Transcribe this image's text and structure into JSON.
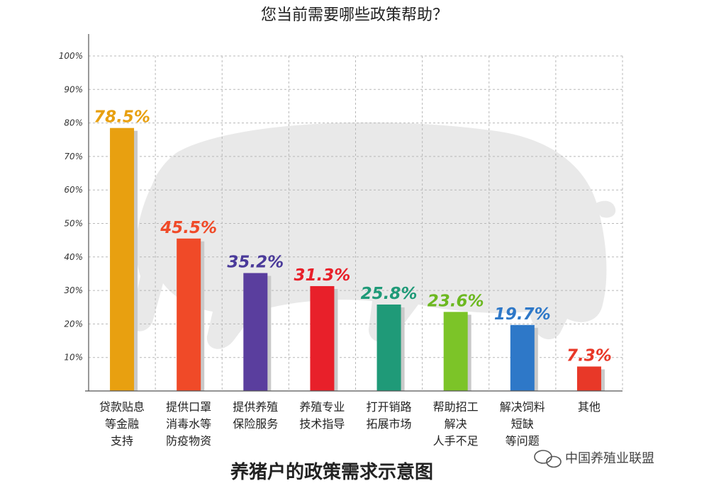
{
  "chart_data": {
    "type": "bar",
    "title": "您当前需要哪些政策帮助？",
    "subtitle": "养猪户的政策需求示意图",
    "ylim": [
      0,
      100
    ],
    "yticks": [
      "10%",
      "20%",
      "30%",
      "40%",
      "50%",
      "60%",
      "70%",
      "80%",
      "90%",
      "100%"
    ],
    "grid": true,
    "categories": [
      [
        "贷款贴息",
        "等金融",
        "支持"
      ],
      [
        "提供口罩",
        "消毒水等",
        "防疫物资"
      ],
      [
        "提供养殖",
        "保险服务"
      ],
      [
        "养殖专业",
        "技术指导"
      ],
      [
        "打开销路",
        "拓展市场"
      ],
      [
        "帮助招工",
        "解决",
        "人手不足"
      ],
      [
        "解决饲料",
        "短缺",
        "等问题"
      ],
      [
        "其他"
      ]
    ],
    "values": [
      78.5,
      45.5,
      35.2,
      31.3,
      25.8,
      23.6,
      19.7,
      7.3
    ],
    "value_labels": [
      "78.5%",
      "45.5%",
      "35.2%",
      "31.3%",
      "25.8%",
      "23.6%",
      "19.7%",
      "7.3%"
    ],
    "bar_colors": [
      "#E8A010",
      "#F04A28",
      "#5A3E9E",
      "#E8202A",
      "#1F9A78",
      "#7CC428",
      "#2E78C8",
      "#E83828"
    ],
    "label_colors": [
      "#E8A010",
      "#F04A28",
      "#4A3A9A",
      "#E8202A",
      "#1F9A78",
      "#6CB820",
      "#2E78C8",
      "#E83828"
    ]
  },
  "watermark": {
    "text": "中国养殖业联盟",
    "icon": "wechat-icon"
  }
}
